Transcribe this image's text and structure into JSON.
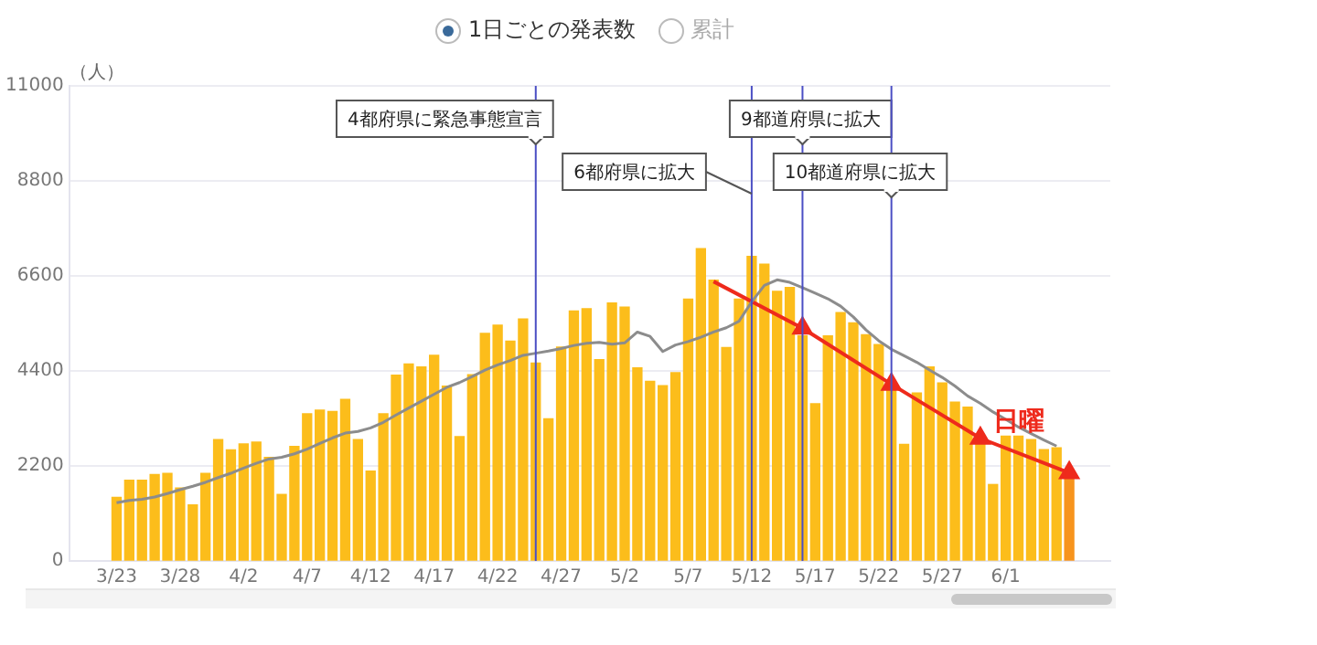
{
  "chart_data": {
    "type": "bar",
    "ylabel": "（人）",
    "x": [
      "--03-23",
      "--03-24",
      "--03-25",
      "--03-26",
      "--03-27",
      "--03-28",
      "--03-29",
      "--03-30",
      "--03-31",
      "--04-01",
      "--04-02",
      "--04-03",
      "--04-04",
      "--04-05",
      "--04-06",
      "--04-07",
      "--04-08",
      "--04-09",
      "--04-10",
      "--04-11",
      "--04-12",
      "--04-13",
      "--04-14",
      "--04-15",
      "--04-16",
      "--04-17",
      "--04-18",
      "--04-19",
      "--04-20",
      "--04-21",
      "--04-22",
      "--04-23",
      "--04-24",
      "--04-25",
      "--04-26",
      "--04-27",
      "--04-28",
      "--04-29",
      "--04-30",
      "--05-01",
      "--05-02",
      "--05-03",
      "--05-04",
      "--05-05",
      "--05-06",
      "--05-07",
      "--05-08",
      "--05-09",
      "--05-10",
      "--05-11",
      "--05-12",
      "--05-13",
      "--05-14",
      "--05-15",
      "--05-16",
      "--05-17",
      "--05-18",
      "--05-19",
      "--05-20",
      "--05-21",
      "--05-22",
      "--05-23",
      "--05-24",
      "--05-25",
      "--05-26",
      "--05-27",
      "--05-28",
      "--05-29",
      "--05-30",
      "--05-31",
      "--06-01",
      "--06-02",
      "--06-03",
      "--06-04",
      "--06-05",
      "--06-06"
    ],
    "series": [
      {
        "colors": [
          "#fcbd1b",
          "#fcbd1b",
          "#fcbd1b",
          "#fcbd1b",
          "#fcbd1b",
          "#fcbd1b",
          "#fcbd1b",
          "#fcbd1b",
          "#fcbd1b",
          "#fcbd1b",
          "#fcbd1b",
          "#fcbd1b",
          "#fcbd1b",
          "#fcbd1b",
          "#fcbd1b",
          "#fcbd1b",
          "#fcbd1b",
          "#fcbd1b",
          "#fcbd1b",
          "#fcbd1b",
          "#fcbd1b",
          "#fcbd1b",
          "#fcbd1b",
          "#fcbd1b",
          "#fcbd1b",
          "#fcbd1b",
          "#fcbd1b",
          "#fcbd1b",
          "#fcbd1b",
          "#fcbd1b",
          "#fcbd1b",
          "#fcbd1b",
          "#fcbd1b",
          "#fcbd1b",
          "#fcbd1b",
          "#fcbd1b",
          "#fcbd1b",
          "#fcbd1b",
          "#fcbd1b",
          "#fcbd1b",
          "#fcbd1b",
          "#fcbd1b",
          "#fcbd1b",
          "#fcbd1b",
          "#fcbd1b",
          "#fcbd1b",
          "#fcbd1b",
          "#fcbd1b",
          "#fcbd1b",
          "#fcbd1b",
          "#fcbd1b",
          "#fcbd1b",
          "#fcbd1b",
          "#fcbd1b",
          "#fcbd1b",
          "#fcbd1b",
          "#fcbd1b",
          "#fcbd1b",
          "#fcbd1b",
          "#fcbd1b",
          "#fcbd1b",
          "#fcbd1b",
          "#fcbd1b",
          "#fcbd1b",
          "#fcbd1b",
          "#fcbd1b",
          "#fcbd1b",
          "#fcbd1b",
          "#fcbd1b",
          "#fcbd1b",
          "#fcbd1b",
          "#fcbd1b",
          "#fcbd1b",
          "#fcbd1b",
          "#fcbd1b",
          "#f7941d"
        ],
        "values": [
          1470,
          1870,
          1870,
          2000,
          2030,
          1690,
          1300,
          2030,
          2810,
          2570,
          2710,
          2750,
          2400,
          1540,
          2650,
          3410,
          3490,
          3460,
          3740,
          2810,
          2080,
          3410,
          4300,
          4560,
          4490,
          4760,
          4050,
          2880,
          4310,
          5270,
          5460,
          5090,
          5600,
          4580,
          3290,
          4950,
          5790,
          5840,
          4660,
          5970,
          5880,
          4470,
          4160,
          4060,
          4360,
          6060,
          7230,
          6500,
          4940,
          6060,
          7050,
          6870,
          6240,
          6330,
          5210,
          3640,
          5210,
          5750,
          5510,
          5240,
          5010,
          4040,
          2700,
          3890,
          4490,
          4120,
          3680,
          3560,
          2740,
          1770,
          2890,
          2890,
          2810,
          2580,
          2620,
          2040
        ]
      },
      {
        "type": "line",
        "color": "#8c8c8c",
        "marker": "none",
        "values": [
          1350,
          1400,
          1430,
          1480,
          1560,
          1650,
          1730,
          1820,
          1930,
          2030,
          2150,
          2260,
          2360,
          2400,
          2480,
          2590,
          2720,
          2850,
          2960,
          3000,
          3080,
          3210,
          3380,
          3540,
          3700,
          3860,
          4020,
          4130,
          4270,
          4420,
          4540,
          4640,
          4760,
          4810,
          4860,
          4920,
          4990,
          5040,
          5060,
          5020,
          5050,
          5300,
          5200,
          4850,
          5000,
          5080,
          5180,
          5300,
          5400,
          5550,
          6000,
          6380,
          6510,
          6450,
          6330,
          6200,
          6070,
          5900,
          5650,
          5350,
          5100,
          4900,
          4750,
          4600,
          4420,
          4250,
          4050,
          3820,
          3650,
          3450,
          3280,
          3100,
          2950,
          2800,
          2660,
          null
        ]
      },
      {
        "type": "line",
        "color": "#ee2a1c",
        "marker": "triangle",
        "x": [
          "--05-09",
          "--05-16",
          "--05-23",
          "--05-30",
          "--06-06"
        ],
        "values": [
          6470,
          5390,
          4090,
          2840,
          2040
        ]
      }
    ],
    "xlim": [
      "--03-22",
      "--06-06"
    ],
    "xticks": [
      {
        "value": "--03-23",
        "label": "3/23"
      },
      {
        "value": "--03-28",
        "label": "3/28"
      },
      {
        "value": "--04-02",
        "label": "4/2"
      },
      {
        "value": "--04-07",
        "label": "4/7"
      },
      {
        "value": "--04-12",
        "label": "4/12"
      },
      {
        "value": "--04-17",
        "label": "4/17"
      },
      {
        "value": "--04-22",
        "label": "4/22"
      },
      {
        "value": "--04-27",
        "label": "4/27"
      },
      {
        "value": "--05-02",
        "label": "5/2"
      },
      {
        "value": "--05-07",
        "label": "5/7"
      },
      {
        "value": "--05-12",
        "label": "5/12"
      },
      {
        "value": "--05-17",
        "label": "5/17"
      },
      {
        "value": "--05-22",
        "label": "5/22"
      },
      {
        "value": "--05-27",
        "label": "5/27"
      },
      {
        "value": "--06-01",
        "label": "6/1"
      }
    ],
    "ylim": [
      0,
      11000
    ],
    "yticks": [
      0,
      2200,
      4400,
      6600,
      8800,
      11000
    ],
    "grid": "y",
    "ref_lines": [
      {
        "axis": "x",
        "value": "--04-25",
        "label": "4都府県に緊急事態宣言",
        "color": "#4b4fc4"
      },
      {
        "axis": "x",
        "value": "--05-12",
        "label": "6都府県に拡大",
        "color": "#4b4fc4"
      },
      {
        "axis": "x",
        "value": "--05-16",
        "label": "9都道府県に拡大",
        "color": "#4b4fc4"
      },
      {
        "axis": "x",
        "value": "--05-23",
        "label": "10都道府県に拡大",
        "color": "#4b4fc4"
      }
    ],
    "annotations": [
      "1日ごとの発表数",
      "累計",
      {
        "text": "日曜",
        "x": "--05-31",
        "y": 3200
      }
    ]
  }
}
